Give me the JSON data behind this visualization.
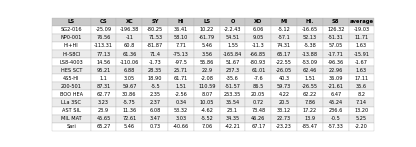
{
  "columns": [
    "LS",
    "CS",
    "XC",
    "SY",
    "HI",
    "LS",
    "O",
    "XO",
    "MI",
    "HI.",
    "S8",
    "average"
  ],
  "rows": [
    [
      "SG2-016",
      "-25.09",
      "-196.38",
      "-80.25",
      "36.41",
      "10.22",
      "-2.2.43",
      "6.06",
      "-5.12",
      "-16.65",
      "126.32",
      "-19.03"
    ],
    [
      "NP0-001",
      "76.56",
      "-11",
      "71.53",
      "58.10",
      "-61.79",
      "54.51",
      "9.05",
      "-57.1",
      "52.13",
      "-51.31",
      "11.71"
    ],
    [
      "HI+HI",
      "-113.31",
      "60.8",
      "-81.87",
      "7.71",
      "5.46",
      "1.55",
      "-11.3",
      "74.31",
      "-5.38",
      "57.05",
      "1.63"
    ],
    [
      "HI-S8CI",
      "77.13",
      "61.36",
      "71.4",
      "-75.13",
      "3.56",
      "-165.84",
      "-66.85",
      "65.17",
      "-13.88",
      "-17.71",
      "-15.91"
    ],
    [
      "LS8-4003",
      "14.56",
      "-110.06",
      "-1.73",
      "-97.5",
      "55.86",
      "51.67",
      "-80.93",
      "-22.55",
      "-53.09",
      "-96.36",
      "-1.67"
    ],
    [
      "HES SCT",
      "95.21",
      "6.88",
      "28.35",
      "25.71",
      "22.9",
      "237.3",
      "61.01",
      "-26.05",
      "62.46",
      "22.96",
      "1.63"
    ],
    [
      "4S5-HI",
      "1.1",
      "3.05",
      "18.90",
      "61.71",
      "-2.08",
      "-35.6",
      "-7.6",
      "40.3",
      "1.51",
      "36.09",
      "17.11"
    ],
    [
      "200-501",
      "87.31",
      "59.67",
      "-5.5",
      "1.51",
      "110.59",
      "-51.57",
      "86.5",
      "59.73",
      "-26.55",
      "-21.61",
      "35.6"
    ],
    [
      "BOO HEA",
      "62.77",
      "30.86",
      "2.35",
      "-2.56",
      "8.07",
      "253.35",
      "20.05",
      "4.22",
      "62.22",
      "6.47",
      "8.2"
    ],
    [
      "LLa 3SC",
      "3.23",
      "-5.75",
      "2.37",
      "0.34",
      "10.05",
      "35.54",
      "0.72",
      "20.5",
      "7.86",
      "45.24",
      "7.14"
    ],
    [
      "AST SIL",
      "23.9",
      "11.36",
      "6.08",
      "53.32",
      "-4.62",
      "23.1",
      "73.48",
      "33.12",
      "17.22",
      "236.6",
      "13.20"
    ],
    [
      "MIL MAT",
      "45.65",
      "72.61",
      "3.47",
      "3.03",
      "-5.52",
      "34.35",
      "46.26",
      "22.73",
      "13.9",
      "-0.5",
      "5.25"
    ],
    [
      "Sari",
      "65.27",
      "5.46",
      "0.73",
      "-40.66",
      "7.06",
      "-42.21",
      "67.17",
      "-23.23",
      "-85.47",
      "-57.33",
      "-2.20"
    ]
  ],
  "header_bg": "#c8c8c8",
  "row_bg_odd": "#ffffff",
  "row_bg_even": "#ebebeb",
  "font_size": 3.6,
  "header_font_size": 3.8,
  "text_color": "#000000",
  "edge_color": "#aaaaaa",
  "edge_lw": 0.2,
  "fig_width": 4.16,
  "fig_height": 1.47,
  "dpi": 100
}
